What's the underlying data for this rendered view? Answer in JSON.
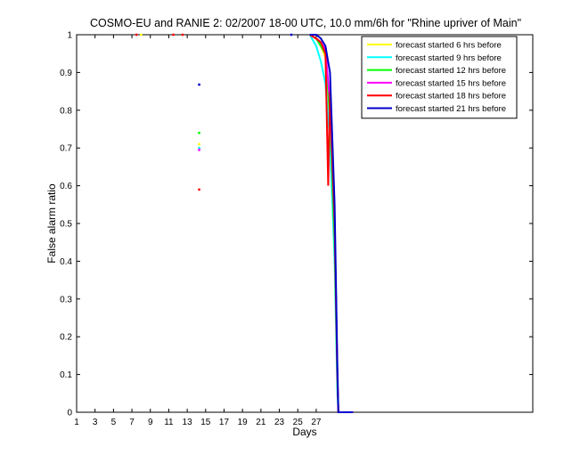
{
  "chart_data": {
    "type": "line",
    "title": "COSMO-EU and RANIE 2: 02/2007 18-00 UTC, 10.0 mm/6h for \"Rhine upriver of Main\"",
    "xlabel": "Days",
    "ylabel": "False alarm ratio",
    "xlim": [
      1,
      50.5
    ],
    "ylim": [
      0,
      1
    ],
    "xticks": [
      1,
      3,
      5,
      7,
      9,
      11,
      13,
      15,
      17,
      19,
      21,
      23,
      25,
      27
    ],
    "yticks": [
      0,
      0.1,
      0.2,
      0.3,
      0.4,
      0.5,
      0.6,
      0.7,
      0.8,
      0.9,
      1
    ],
    "xtick_labels": [
      "1",
      "3",
      "5",
      "7",
      "9",
      "11",
      "13",
      "15",
      "17",
      "19",
      "21",
      "23",
      "25",
      "27"
    ],
    "ytick_labels": [
      "0",
      "0.1",
      "0.2",
      "0.3",
      "0.4",
      "0.5",
      "0.6",
      "0.7",
      "0.8",
      "0.9",
      "1"
    ],
    "legend_position": "top-right",
    "series": [
      {
        "name": "forecast started 6 hrs before",
        "color": "#ffff00",
        "points": [
          [
            26.3,
            1
          ],
          [
            27,
            0.99
          ],
          [
            27.5,
            0.97
          ],
          [
            28,
            0.94
          ],
          [
            28.5,
            0.8
          ],
          [
            29,
            0.5
          ],
          [
            29.3,
            0.1
          ],
          [
            29.4,
            0
          ],
          [
            31,
            0
          ]
        ],
        "markers": [
          [
            8,
            1
          ],
          [
            14.3,
            0.71
          ]
        ]
      },
      {
        "name": "forecast started 9 hrs before",
        "color": "#00ffff",
        "points": [
          [
            26.3,
            1
          ],
          [
            27,
            0.97
          ],
          [
            27.5,
            0.93
          ],
          [
            28,
            0.87
          ],
          [
            28.5,
            0.72
          ],
          [
            29,
            0.4
          ],
          [
            29.3,
            0.05
          ],
          [
            29.4,
            0
          ],
          [
            31,
            0
          ]
        ],
        "markers": [
          [
            14.3,
            0.7
          ]
        ]
      },
      {
        "name": "forecast started 12 hrs before",
        "color": "#00ff00",
        "points": [
          [
            26.3,
            1
          ],
          [
            27,
            0.99
          ],
          [
            27.5,
            0.97
          ],
          [
            28,
            0.95
          ],
          [
            28.5,
            0.78
          ],
          [
            29,
            0.45
          ],
          [
            29.3,
            0.08
          ],
          [
            29.4,
            0
          ],
          [
            31,
            0
          ]
        ],
        "markers": [
          [
            14.3,
            0.74
          ]
        ]
      },
      {
        "name": "forecast started 15 hrs before",
        "color": "#ff00ff",
        "points": [
          [
            26.3,
            1
          ],
          [
            27,
            0.99
          ],
          [
            27.5,
            0.98
          ],
          [
            28,
            0.96
          ],
          [
            28.5,
            0.82
          ],
          [
            29,
            0.5
          ],
          [
            29.3,
            0.1
          ],
          [
            29.4,
            0
          ],
          [
            31,
            0
          ]
        ],
        "markers": [
          [
            14.3,
            0.695
          ]
        ]
      },
      {
        "name": "forecast started 18 hrs before",
        "color": "#ff0000",
        "points": [
          [
            26.3,
            1
          ],
          [
            27,
            0.99
          ],
          [
            27.5,
            0.98
          ],
          [
            28,
            0.95
          ],
          [
            28.3,
            0.6
          ],
          [
            28.5,
            0.85
          ],
          [
            29,
            0.5
          ],
          [
            29.3,
            0.1
          ],
          [
            29.4,
            0
          ],
          [
            31,
            0
          ]
        ],
        "markers": [
          [
            7.5,
            1
          ],
          [
            11.5,
            1
          ],
          [
            12.5,
            1
          ],
          [
            14.3,
            0.59
          ]
        ]
      },
      {
        "name": "forecast started 21 hrs before",
        "color": "#0000cc",
        "points": [
          [
            26.3,
            1
          ],
          [
            27,
            1
          ],
          [
            27.5,
            0.99
          ],
          [
            28,
            0.97
          ],
          [
            28.5,
            0.9
          ],
          [
            29,
            0.55
          ],
          [
            29.3,
            0.12
          ],
          [
            29.4,
            0
          ],
          [
            31,
            0
          ]
        ],
        "markers": [
          [
            14.3,
            0.868
          ],
          [
            24.3,
            1
          ]
        ]
      }
    ]
  }
}
